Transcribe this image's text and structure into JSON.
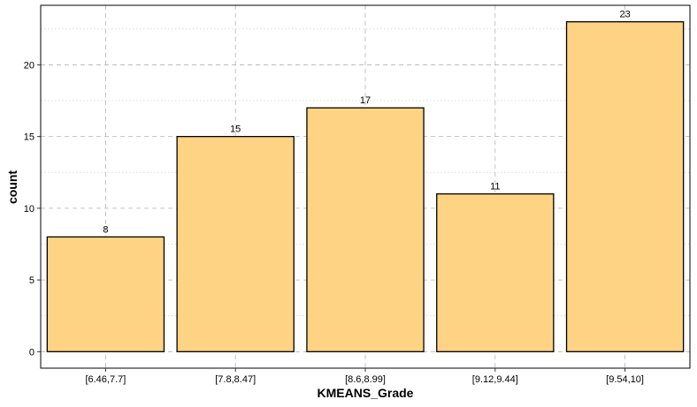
{
  "chart_data": {
    "type": "bar",
    "categories": [
      "[6.46,7.7]",
      "[7.8,8.47]",
      "[8.6,8.99]",
      "[9.12,9.44]",
      "[9.54,10]"
    ],
    "values": [
      8,
      15,
      17,
      11,
      23
    ],
    "data_labels": [
      "8",
      "15",
      "17",
      "11",
      "23"
    ],
    "xlabel": "KMEANS_Grade",
    "ylabel": "count",
    "ylim": [
      -1.15,
      24.15
    ],
    "yticks": [
      0,
      5,
      10,
      15,
      20
    ],
    "ytick_labels": [
      "0",
      "5",
      "10",
      "15",
      "20"
    ],
    "grid": true,
    "colors": {
      "bar_fill": "#FED383",
      "bar_stroke": "#000000",
      "grid_major": "#B3B3B3",
      "grid_minor": "#D3D3D3",
      "panel_border": "#000000"
    }
  }
}
